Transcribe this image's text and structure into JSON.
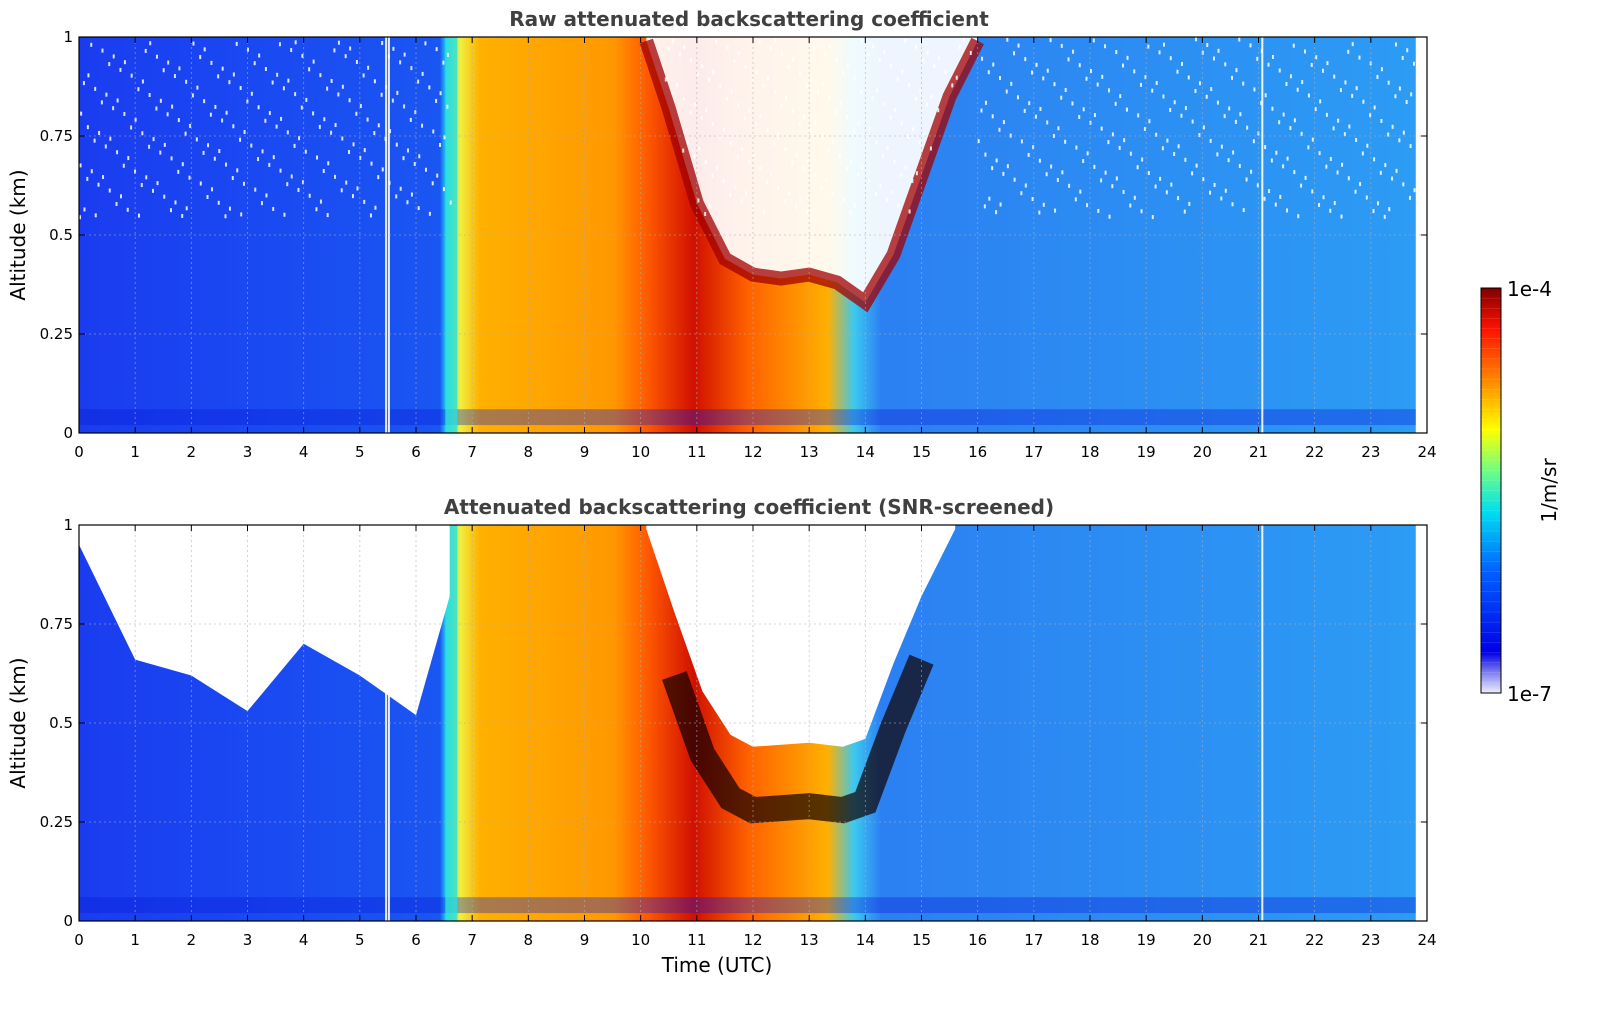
{
  "chart_data": [
    {
      "type": "heatmap",
      "title": "Raw attenuated backscattering coefficient",
      "xlabel": "",
      "ylabel": "Altitude (km)",
      "xlim": [
        0,
        24
      ],
      "ylim": [
        0,
        1
      ],
      "x_ticks": [
        "0",
        "1",
        "2",
        "3",
        "4",
        "5",
        "6",
        "7",
        "8",
        "9",
        "10",
        "11",
        "12",
        "13",
        "14",
        "15",
        "16",
        "17",
        "18",
        "19",
        "20",
        "21",
        "22",
        "23",
        "24"
      ],
      "y_ticks": [
        "0",
        "0.25",
        "0.5",
        "0.75",
        "1"
      ],
      "grid": true,
      "colormap": "jet",
      "screened": false,
      "features": {
        "fog_layer_utc": [
          6.7,
          10.1
        ],
        "boundary_layer_top_km": [
          {
            "t": 10.1,
            "z": 0.99
          },
          {
            "t": 10.5,
            "z": 0.82
          },
          {
            "t": 11.0,
            "z": 0.58
          },
          {
            "t": 11.5,
            "z": 0.44
          },
          {
            "t": 12.0,
            "z": 0.4
          },
          {
            "t": 12.5,
            "z": 0.39
          },
          {
            "t": 13.0,
            "z": 0.4
          },
          {
            "t": 13.5,
            "z": 0.38
          },
          {
            "t": 14.0,
            "z": 0.33
          },
          {
            "t": 14.5,
            "z": 0.45
          },
          {
            "t": 15.0,
            "z": 0.65
          },
          {
            "t": 15.5,
            "z": 0.85
          },
          {
            "t": 16.0,
            "z": 0.99
          }
        ],
        "data_end_utc": 23.8
      }
    },
    {
      "type": "heatmap",
      "title": "Attenuated backscattering coefficient (SNR-screened)",
      "xlabel": "Time (UTC)",
      "ylabel": "Altitude (km)",
      "xlim": [
        0,
        24
      ],
      "ylim": [
        0,
        1
      ],
      "x_ticks": [
        "0",
        "1",
        "2",
        "3",
        "4",
        "5",
        "6",
        "7",
        "8",
        "9",
        "10",
        "11",
        "12",
        "13",
        "14",
        "15",
        "16",
        "17",
        "18",
        "19",
        "20",
        "21",
        "22",
        "23",
        "24"
      ],
      "y_ticks": [
        "0",
        "0.25",
        "0.5",
        "0.75",
        "1"
      ],
      "grid": true,
      "colormap": "jet",
      "screened": true,
      "features": {
        "fog_layer_utc": [
          6.7,
          10.1
        ],
        "valid_data_top_km": [
          {
            "t": 0.0,
            "z": 0.95
          },
          {
            "t": 1.0,
            "z": 0.66
          },
          {
            "t": 2.0,
            "z": 0.62
          },
          {
            "t": 3.0,
            "z": 0.53
          },
          {
            "t": 4.0,
            "z": 0.7
          },
          {
            "t": 5.0,
            "z": 0.62
          },
          {
            "t": 6.0,
            "z": 0.52
          },
          {
            "t": 6.6,
            "z": 0.82
          }
        ],
        "data_end_utc": 23.8
      }
    }
  ],
  "colorbar": {
    "max_label": "1e-4",
    "min_label": "1e-7",
    "unit_label": "1/m/sr",
    "scale": "log"
  },
  "colors": {
    "background_low": "#0a1ef0",
    "background_mid": "#1e6ef0",
    "background_clear": "#2aa0f0",
    "fog_core": "#ff9a00",
    "peak": "#800000"
  }
}
